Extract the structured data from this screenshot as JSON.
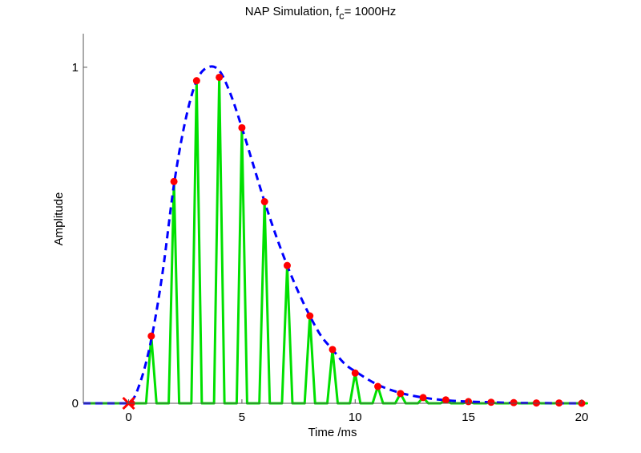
{
  "chart_data": {
    "type": "line",
    "title": {
      "main": "NAP Simulation, f",
      "subscript": "c",
      "suffix": "= 1000Hz"
    },
    "xlabel": "Time /ms",
    "ylabel": "Amplitude",
    "xlim": [
      -2,
      20
    ],
    "ylim": [
      0,
      1.1
    ],
    "xticks": [
      0,
      5,
      10,
      15,
      20
    ],
    "yticks": [
      0,
      1
    ],
    "grid": false,
    "colors": {
      "envelope": "#0000ff",
      "nap": "#00e000",
      "peaks": "#ff0000",
      "onset": "#ff0000"
    },
    "envelope": {
      "style": "dashed",
      "x": [
        -2,
        -1,
        0,
        0.5,
        1,
        1.5,
        2,
        2.5,
        3,
        3.5,
        4,
        4.5,
        5,
        5.5,
        6,
        6.5,
        7,
        7.5,
        8,
        8.5,
        9,
        9.5,
        10,
        11,
        12,
        13,
        14,
        15,
        16,
        17,
        18,
        19,
        20
      ],
      "y": [
        0,
        0,
        0,
        0.06,
        0.19,
        0.39,
        0.65,
        0.84,
        0.96,
        1.0,
        0.99,
        0.92,
        0.82,
        0.71,
        0.6,
        0.5,
        0.41,
        0.33,
        0.26,
        0.2,
        0.16,
        0.12,
        0.095,
        0.055,
        0.031,
        0.017,
        0.009,
        0.005,
        0.003,
        0.001,
        0.001,
        0,
        0
      ]
    },
    "nap_pulses": {
      "peak_times": [
        1,
        2,
        3,
        4,
        5,
        6,
        7,
        8,
        9,
        10,
        11,
        12,
        13,
        14,
        15,
        16,
        17,
        18,
        19,
        20
      ],
      "peak_values": [
        0.2,
        0.66,
        0.96,
        0.97,
        0.82,
        0.6,
        0.41,
        0.26,
        0.16,
        0.09,
        0.05,
        0.029,
        0.017,
        0.01,
        0.005,
        0.003,
        0.002,
        0.001,
        0.001,
        0
      ]
    },
    "onset_marker": {
      "x": 0,
      "y": 0,
      "symbol": "x"
    }
  }
}
